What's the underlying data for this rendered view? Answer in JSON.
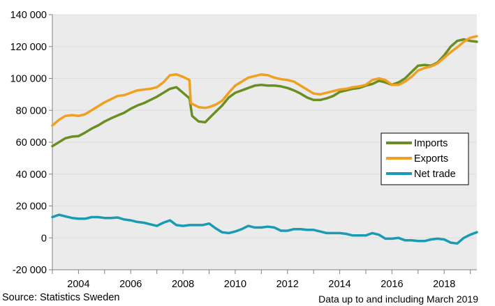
{
  "chart_data": {
    "type": "line",
    "grid": true,
    "legend_position": "right",
    "ylim": [
      -20000,
      140000
    ],
    "xlim": [
      2003.0,
      2019.25
    ],
    "y_ticks": [
      -20000,
      0,
      20000,
      40000,
      60000,
      80000,
      100000,
      120000,
      140000
    ],
    "y_tick_labels": [
      "-20 000",
      "0",
      "20 000",
      "40 000",
      "60 000",
      "80 000",
      "100 000",
      "120 000",
      "140 000"
    ],
    "x_tick_labels": [
      {
        "value": 2004,
        "label": "2004"
      },
      {
        "value": 2006,
        "label": "2006"
      },
      {
        "value": 2008,
        "label": "2008"
      },
      {
        "value": 2010,
        "label": "2010"
      },
      {
        "value": 2012,
        "label": "2012"
      },
      {
        "value": 2014,
        "label": "2014"
      },
      {
        "value": 2016,
        "label": "2016"
      },
      {
        "value": 2018,
        "label": "2018"
      }
    ],
    "series": [
      {
        "name": "Imports",
        "color": "#6b8e23",
        "points": [
          [
            2003.0,
            57500
          ],
          [
            2003.25,
            60000
          ],
          [
            2003.5,
            62500
          ],
          [
            2003.75,
            63500
          ],
          [
            2004.0,
            63800
          ],
          [
            2004.25,
            66000
          ],
          [
            2004.5,
            68500
          ],
          [
            2004.75,
            70500
          ],
          [
            2005.0,
            73000
          ],
          [
            2005.25,
            75000
          ],
          [
            2005.5,
            76800
          ],
          [
            2005.75,
            78500
          ],
          [
            2006.0,
            81000
          ],
          [
            2006.25,
            83000
          ],
          [
            2006.5,
            84500
          ],
          [
            2006.75,
            86500
          ],
          [
            2007.0,
            88500
          ],
          [
            2007.25,
            91000
          ],
          [
            2007.5,
            93500
          ],
          [
            2007.75,
            94500
          ],
          [
            2008.0,
            91000
          ],
          [
            2008.25,
            87500
          ],
          [
            2008.35,
            76500
          ],
          [
            2008.6,
            73000
          ],
          [
            2008.85,
            72500
          ],
          [
            2009.0,
            75000
          ],
          [
            2009.25,
            79000
          ],
          [
            2009.5,
            83000
          ],
          [
            2009.75,
            88000
          ],
          [
            2010.0,
            91000
          ],
          [
            2010.25,
            92500
          ],
          [
            2010.5,
            94000
          ],
          [
            2010.75,
            95500
          ],
          [
            2011.0,
            96000
          ],
          [
            2011.25,
            95500
          ],
          [
            2011.5,
            95500
          ],
          [
            2011.75,
            95000
          ],
          [
            2012.0,
            94000
          ],
          [
            2012.25,
            92500
          ],
          [
            2012.5,
            90500
          ],
          [
            2012.75,
            88000
          ],
          [
            2013.0,
            86500
          ],
          [
            2013.25,
            86500
          ],
          [
            2013.5,
            87500
          ],
          [
            2013.75,
            89000
          ],
          [
            2014.0,
            91500
          ],
          [
            2014.25,
            92500
          ],
          [
            2014.5,
            93500
          ],
          [
            2014.75,
            94000
          ],
          [
            2015.0,
            95500
          ],
          [
            2015.25,
            96500
          ],
          [
            2015.5,
            98500
          ],
          [
            2015.75,
            97500
          ],
          [
            2016.0,
            96000
          ],
          [
            2016.25,
            97500
          ],
          [
            2016.5,
            100000
          ],
          [
            2016.75,
            104000
          ],
          [
            2017.0,
            108000
          ],
          [
            2017.25,
            108500
          ],
          [
            2017.5,
            108000
          ],
          [
            2017.75,
            110000
          ],
          [
            2018.0,
            114500
          ],
          [
            2018.25,
            120000
          ],
          [
            2018.5,
            123500
          ],
          [
            2018.75,
            124500
          ],
          [
            2019.0,
            123500
          ],
          [
            2019.25,
            123000
          ]
        ]
      },
      {
        "name": "Exports",
        "color": "#f0a020",
        "points": [
          [
            2003.0,
            70500
          ],
          [
            2003.25,
            74000
          ],
          [
            2003.5,
            76500
          ],
          [
            2003.75,
            77000
          ],
          [
            2004.0,
            76500
          ],
          [
            2004.25,
            77500
          ],
          [
            2004.5,
            80000
          ],
          [
            2004.75,
            82500
          ],
          [
            2005.0,
            85000
          ],
          [
            2005.25,
            87000
          ],
          [
            2005.5,
            89000
          ],
          [
            2005.75,
            89500
          ],
          [
            2006.0,
            91000
          ],
          [
            2006.25,
            92500
          ],
          [
            2006.5,
            93000
          ],
          [
            2006.75,
            93500
          ],
          [
            2007.0,
            94500
          ],
          [
            2007.25,
            97500
          ],
          [
            2007.5,
            102000
          ],
          [
            2007.75,
            102500
          ],
          [
            2008.0,
            101000
          ],
          [
            2008.25,
            99000
          ],
          [
            2008.3,
            84500
          ],
          [
            2008.6,
            82000
          ],
          [
            2008.85,
            81500
          ],
          [
            2009.0,
            82000
          ],
          [
            2009.25,
            83500
          ],
          [
            2009.5,
            86000
          ],
          [
            2009.75,
            91000
          ],
          [
            2010.0,
            95500
          ],
          [
            2010.25,
            98000
          ],
          [
            2010.5,
            100500
          ],
          [
            2010.75,
            101500
          ],
          [
            2011.0,
            102500
          ],
          [
            2011.25,
            102000
          ],
          [
            2011.5,
            100500
          ],
          [
            2011.75,
            99500
          ],
          [
            2012.0,
            99000
          ],
          [
            2012.25,
            98000
          ],
          [
            2012.5,
            95500
          ],
          [
            2012.75,
            93000
          ],
          [
            2013.0,
            90500
          ],
          [
            2013.25,
            90000
          ],
          [
            2013.5,
            91000
          ],
          [
            2013.75,
            92000
          ],
          [
            2014.0,
            93000
          ],
          [
            2014.25,
            93500
          ],
          [
            2014.5,
            94500
          ],
          [
            2014.75,
            95000
          ],
          [
            2015.0,
            96000
          ],
          [
            2015.25,
            99000
          ],
          [
            2015.5,
            100000
          ],
          [
            2015.75,
            99000
          ],
          [
            2016.0,
            96000
          ],
          [
            2016.25,
            96000
          ],
          [
            2016.5,
            98000
          ],
          [
            2016.75,
            101000
          ],
          [
            2017.0,
            105000
          ],
          [
            2017.25,
            106500
          ],
          [
            2017.5,
            107500
          ],
          [
            2017.75,
            109500
          ],
          [
            2018.0,
            113000
          ],
          [
            2018.25,
            116500
          ],
          [
            2018.5,
            119500
          ],
          [
            2018.75,
            123000
          ],
          [
            2019.0,
            125500
          ],
          [
            2019.25,
            126500
          ]
        ]
      },
      {
        "name": "Net trade",
        "color": "#1a9bb4",
        "points": [
          [
            2003.0,
            13000
          ],
          [
            2003.25,
            14500
          ],
          [
            2003.5,
            13500
          ],
          [
            2003.75,
            12500
          ],
          [
            2004.0,
            12000
          ],
          [
            2004.25,
            12000
          ],
          [
            2004.5,
            13000
          ],
          [
            2004.75,
            13000
          ],
          [
            2005.0,
            12500
          ],
          [
            2005.25,
            12500
          ],
          [
            2005.5,
            12800
          ],
          [
            2005.75,
            11500
          ],
          [
            2006.0,
            11000
          ],
          [
            2006.25,
            10000
          ],
          [
            2006.5,
            9500
          ],
          [
            2006.75,
            8500
          ],
          [
            2007.0,
            7500
          ],
          [
            2007.25,
            9500
          ],
          [
            2007.5,
            11000
          ],
          [
            2007.75,
            8000
          ],
          [
            2008.0,
            7500
          ],
          [
            2008.25,
            8000
          ],
          [
            2008.5,
            8000
          ],
          [
            2008.75,
            8000
          ],
          [
            2009.0,
            9000
          ],
          [
            2009.25,
            6000
          ],
          [
            2009.5,
            3500
          ],
          [
            2009.75,
            3000
          ],
          [
            2010.0,
            4000
          ],
          [
            2010.25,
            5500
          ],
          [
            2010.5,
            7500
          ],
          [
            2010.75,
            6500
          ],
          [
            2011.0,
            6500
          ],
          [
            2011.25,
            7000
          ],
          [
            2011.5,
            6500
          ],
          [
            2011.75,
            4500
          ],
          [
            2012.0,
            4500
          ],
          [
            2012.25,
            5500
          ],
          [
            2012.5,
            5500
          ],
          [
            2012.75,
            5000
          ],
          [
            2013.0,
            5000
          ],
          [
            2013.25,
            4000
          ],
          [
            2013.5,
            3000
          ],
          [
            2013.75,
            3000
          ],
          [
            2014.0,
            3000
          ],
          [
            2014.25,
            2500
          ],
          [
            2014.5,
            1500
          ],
          [
            2014.75,
            1500
          ],
          [
            2015.0,
            1500
          ],
          [
            2015.25,
            3000
          ],
          [
            2015.5,
            2000
          ],
          [
            2015.75,
            -500
          ],
          [
            2016.0,
            -500
          ],
          [
            2016.25,
            0
          ],
          [
            2016.5,
            -1500
          ],
          [
            2016.75,
            -1500
          ],
          [
            2017.0,
            -2000
          ],
          [
            2017.25,
            -2000
          ],
          [
            2017.5,
            -1000
          ],
          [
            2017.75,
            -500
          ],
          [
            2018.0,
            -1000
          ],
          [
            2018.25,
            -3000
          ],
          [
            2018.5,
            -3500
          ],
          [
            2018.75,
            0
          ],
          [
            2019.0,
            2000
          ],
          [
            2019.25,
            3500
          ]
        ]
      }
    ]
  },
  "footer": {
    "source_prefix": "Source: ",
    "source_brand": "Statistics",
    "source_suffix": " Sweden",
    "note": "Data up to and including March 2019"
  }
}
